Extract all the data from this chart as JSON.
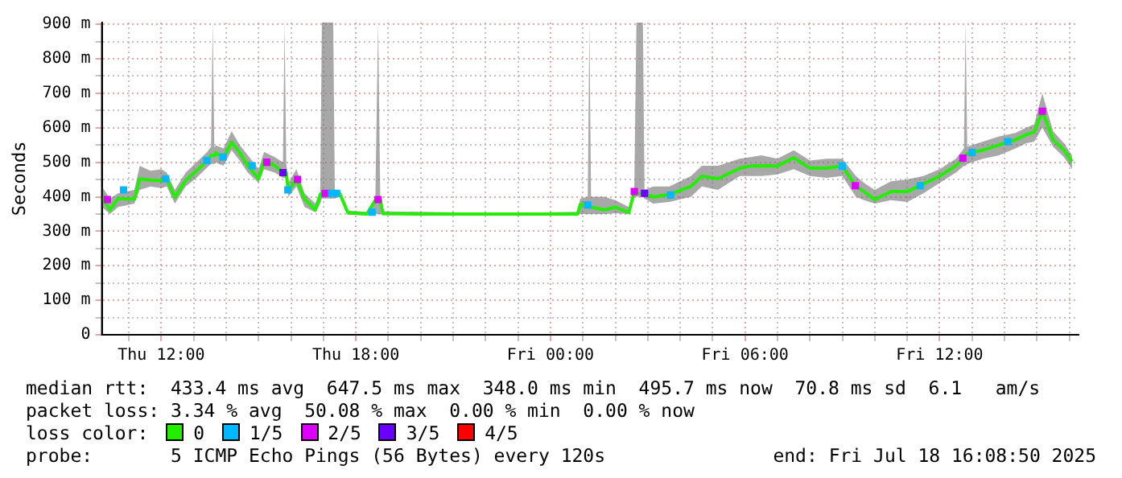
{
  "chart_data": {
    "type": "line",
    "ylabel": "Seconds",
    "xlim": [
      "2025-07-17T10:10",
      "2025-07-18T16:17"
    ],
    "xticks": [
      {
        "value": "2025-07-17T11:00",
        "label": null
      },
      {
        "value": "2025-07-17T12:00",
        "label": "Thu 12:00"
      },
      {
        "value": "2025-07-17T13:00",
        "label": null
      },
      {
        "value": "2025-07-17T14:00",
        "label": null
      },
      {
        "value": "2025-07-17T15:00",
        "label": null
      },
      {
        "value": "2025-07-17T16:00",
        "label": null
      },
      {
        "value": "2025-07-17T17:00",
        "label": null
      },
      {
        "value": "2025-07-17T18:00",
        "label": "Thu 18:00"
      },
      {
        "value": "2025-07-17T19:00",
        "label": null
      },
      {
        "value": "2025-07-17T20:00",
        "label": null
      },
      {
        "value": "2025-07-17T21:00",
        "label": null
      },
      {
        "value": "2025-07-17T22:00",
        "label": null
      },
      {
        "value": "2025-07-17T23:00",
        "label": null
      },
      {
        "value": "2025-07-18T00:00",
        "label": "Fri 00:00"
      },
      {
        "value": "2025-07-18T01:00",
        "label": null
      },
      {
        "value": "2025-07-18T02:00",
        "label": null
      },
      {
        "value": "2025-07-18T03:00",
        "label": null
      },
      {
        "value": "2025-07-18T04:00",
        "label": null
      },
      {
        "value": "2025-07-18T05:00",
        "label": null
      },
      {
        "value": "2025-07-18T06:00",
        "label": "Fri 06:00"
      },
      {
        "value": "2025-07-18T07:00",
        "label": null
      },
      {
        "value": "2025-07-18T08:00",
        "label": null
      },
      {
        "value": "2025-07-18T09:00",
        "label": null
      },
      {
        "value": "2025-07-18T10:00",
        "label": null
      },
      {
        "value": "2025-07-18T11:00",
        "label": null
      },
      {
        "value": "2025-07-18T12:00",
        "label": "Fri 12:00"
      },
      {
        "value": "2025-07-18T13:00",
        "label": null
      },
      {
        "value": "2025-07-18T14:00",
        "label": null
      },
      {
        "value": "2025-07-18T15:00",
        "label": null
      },
      {
        "value": "2025-07-18T16:00",
        "label": null
      }
    ],
    "ylim": [
      0,
      905
    ],
    "yticks": [
      {
        "value": 0,
        "label": "0"
      },
      {
        "value": 50,
        "label": null
      },
      {
        "value": 100,
        "label": "100 m"
      },
      {
        "value": 150,
        "label": null
      },
      {
        "value": 200,
        "label": "200 m"
      },
      {
        "value": 250,
        "label": null
      },
      {
        "value": 300,
        "label": "300 m"
      },
      {
        "value": 350,
        "label": null
      },
      {
        "value": 400,
        "label": "400 m"
      },
      {
        "value": 450,
        "label": null
      },
      {
        "value": 500,
        "label": "500 m"
      },
      {
        "value": 550,
        "label": null
      },
      {
        "value": 600,
        "label": "600 m"
      },
      {
        "value": 650,
        "label": null
      },
      {
        "value": 700,
        "label": "700 m"
      },
      {
        "value": 750,
        "label": null
      },
      {
        "value": 800,
        "label": "800 m"
      },
      {
        "value": 850,
        "label": null
      },
      {
        "value": 900,
        "label": "900 m"
      }
    ],
    "grid": true,
    "legend": "bottom",
    "legend_title": "loss color:",
    "line_style": "solid",
    "series": [
      {
        "name": "0",
        "marker": "none",
        "color": "#22ee00",
        "x": [
          "2025-07-17T10:10",
          "2025-07-17T10:25",
          "2025-07-17T10:40",
          "2025-07-17T11:10",
          "2025-07-17T11:20",
          "2025-07-17T11:40",
          "2025-07-17T12:00",
          "2025-07-17T12:10",
          "2025-07-17T12:25",
          "2025-07-17T12:45",
          "2025-07-17T13:05",
          "2025-07-17T13:25",
          "2025-07-17T13:32",
          "2025-07-17T13:35",
          "2025-07-17T13:38",
          "2025-07-17T13:40",
          "2025-07-17T13:55",
          "2025-07-17T14:10",
          "2025-07-17T14:25",
          "2025-07-17T14:40",
          "2025-07-17T15:00",
          "2025-07-17T15:10",
          "2025-07-17T15:30",
          "2025-07-17T15:45",
          "2025-07-17T15:48",
          "2025-07-17T15:51",
          "2025-07-17T15:55",
          "2025-07-17T16:10",
          "2025-07-17T16:25",
          "2025-07-17T16:45",
          "2025-07-17T16:54",
          "2025-07-17T16:57",
          "2025-07-17T17:12",
          "2025-07-17T17:18",
          "2025-07-17T17:21",
          "2025-07-17T17:30",
          "2025-07-17T17:45",
          "2025-07-17T18:20",
          "2025-07-17T18:36",
          "2025-07-17T18:41",
          "2025-07-17T18:45",
          "2025-07-17T18:50",
          "2025-07-17T20:00",
          "2025-07-17T21:40",
          "2025-07-17T23:20",
          "2025-07-18T00:50",
          "2025-07-18T00:55",
          "2025-07-18T01:09",
          "2025-07-18T01:12",
          "2025-07-18T01:15",
          "2025-07-18T01:40",
          "2025-07-18T02:00",
          "2025-07-18T02:25",
          "2025-07-18T02:35",
          "2025-07-18T02:39",
          "2025-07-18T02:51",
          "2025-07-18T02:54",
          "2025-07-18T03:10",
          "2025-07-18T03:40",
          "2025-07-18T04:20",
          "2025-07-18T04:40",
          "2025-07-18T05:10",
          "2025-07-18T05:50",
          "2025-07-18T06:10",
          "2025-07-18T06:30",
          "2025-07-18T07:00",
          "2025-07-18T07:30",
          "2025-07-18T08:00",
          "2025-07-18T08:30",
          "2025-07-18T09:00",
          "2025-07-18T09:25",
          "2025-07-18T09:40",
          "2025-07-18T10:00",
          "2025-07-18T10:30",
          "2025-07-18T11:00",
          "2025-07-18T11:30",
          "2025-07-18T12:00",
          "2025-07-18T12:30",
          "2025-07-18T12:45",
          "2025-07-18T12:48",
          "2025-07-18T12:51",
          "2025-07-18T13:20",
          "2025-07-18T13:50",
          "2025-07-18T14:20",
          "2025-07-18T14:40",
          "2025-07-18T14:55",
          "2025-07-18T15:10",
          "2025-07-18T15:30",
          "2025-07-18T15:50",
          "2025-07-18T16:05"
        ],
        "values": [
          398,
          362,
          395,
          393,
          452,
          448,
          447,
          452,
          398,
          447,
          475,
          505,
          520,
          520,
          520,
          528,
          513,
          558,
          528,
          490,
          452,
          505,
          490,
          470,
          470,
          470,
          415,
          452,
          393,
          362,
          407,
          410,
          410,
          410,
          410,
          410,
          354,
          350,
          390,
          392,
          392,
          351,
          350,
          350,
          350,
          350,
          377,
          376,
          370,
          370,
          362,
          370,
          354,
          415,
          410,
          410,
          410,
          399,
          407,
          430,
          460,
          452,
          483,
          489,
          490,
          489,
          513,
          483,
          483,
          489,
          430,
          415,
          392,
          415,
          415,
          437,
          460,
          490,
          515,
          520,
          525,
          535,
          550,
          565,
          580,
          588,
          648,
          565,
          535,
          502
        ],
        "lower": [
          370,
          350,
          370,
          380,
          420,
          430,
          425,
          430,
          380,
          430,
          455,
          485,
          495,
          495,
          495,
          500,
          490,
          535,
          505,
          470,
          440,
          480,
          470,
          455,
          455,
          455,
          400,
          430,
          370,
          355,
          380,
          395,
          395,
          395,
          395,
          400,
          348,
          346,
          350,
          350,
          350,
          347,
          346,
          346,
          346,
          346,
          350,
          350,
          350,
          350,
          350,
          352,
          350,
          400,
          400,
          400,
          395,
          380,
          385,
          400,
          430,
          420,
          460,
          460,
          460,
          465,
          480,
          460,
          455,
          460,
          400,
          390,
          380,
          390,
          385,
          410,
          440,
          470,
          490,
          490,
          495,
          510,
          520,
          540,
          555,
          560,
          600,
          545,
          515,
          480
        ],
        "upper": [
          430,
          395,
          410,
          420,
          490,
          475,
          480,
          470,
          420,
          470,
          500,
          530,
          545,
          905,
          545,
          550,
          540,
          590,
          550,
          520,
          480,
          530,
          515,
          500,
          905,
          500,
          440,
          480,
          410,
          380,
          415,
          905,
          905,
          905,
          420,
          420,
          360,
          356,
          400,
          905,
          400,
          358,
          356,
          354,
          354,
          356,
          395,
          400,
          905,
          400,
          400,
          390,
          370,
          420,
          905,
          905,
          420,
          430,
          430,
          460,
          490,
          490,
          510,
          515,
          520,
          510,
          535,
          505,
          510,
          510,
          460,
          440,
          420,
          445,
          450,
          460,
          480,
          510,
          540,
          905,
          545,
          560,
          575,
          585,
          600,
          610,
          700,
          590,
          555,
          520
        ]
      },
      {
        "name": "1/5",
        "type": "scatter",
        "marker": "square",
        "color": "#00b8ff",
        "x": [
          "2025-07-17T10:50",
          "2025-07-17T12:08",
          "2025-07-17T13:24",
          "2025-07-17T13:54",
          "2025-07-17T14:48",
          "2025-07-17T15:54",
          "2025-07-17T17:15",
          "2025-07-17T17:24",
          "2025-07-17T18:30",
          "2025-07-18T01:09",
          "2025-07-18T03:42",
          "2025-07-18T09:00",
          "2025-07-18T11:24",
          "2025-07-18T13:00",
          "2025-07-18T14:06"
        ],
        "values": [
          420,
          452,
          505,
          515,
          490,
          420,
          410,
          410,
          355,
          376,
          405,
          489,
          432,
          528,
          560
        ]
      },
      {
        "name": "2/5",
        "type": "scatter",
        "marker": "square",
        "color": "#dd00ff",
        "x": [
          "2025-07-17T10:20",
          "2025-07-17T15:15",
          "2025-07-17T16:12",
          "2025-07-17T17:03",
          "2025-07-17T18:41",
          "2025-07-18T02:35",
          "2025-07-18T09:24",
          "2025-07-18T12:43",
          "2025-07-18T15:10"
        ],
        "values": [
          392,
          500,
          450,
          410,
          392,
          415,
          432,
          512,
          648
        ]
      },
      {
        "name": "3/5",
        "type": "scatter",
        "marker": "square",
        "color": "#6a00ff",
        "x": [
          "2025-07-17T15:45",
          "2025-07-18T02:54"
        ],
        "values": [
          470,
          410
        ]
      },
      {
        "name": "4/5",
        "type": "scatter",
        "marker": "square",
        "color": "#ff0000"
      }
    ],
    "annotations": [
      "median rtt:  433.4 ms avg  647.5 ms max  348.0 ms min  495.7 ms now  70.8 ms sd  6.1   am/s",
      "packet loss: 3.34 % avg  50.08 % max  0.00 % min  0.00 % now",
      "probe:       5 ICMP Echo Pings (56 Bytes) every 120s",
      "end: Fri Jul 18 16:08:50 2025"
    ]
  }
}
